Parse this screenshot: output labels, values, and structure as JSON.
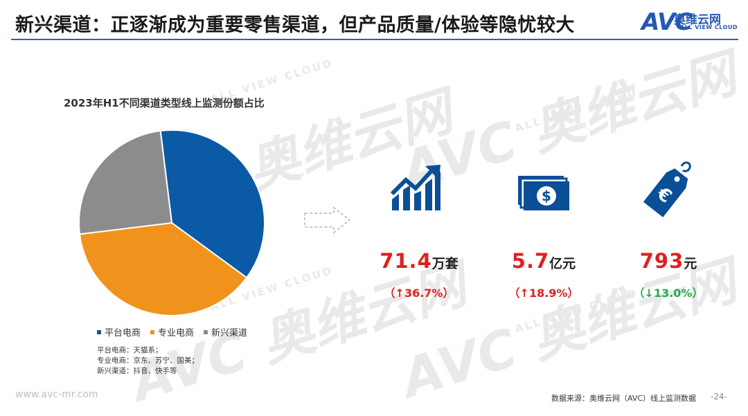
{
  "header": {
    "title": "新兴渠道：正逐渐成为重要零售渠道，但产品质量/体验等隐忧较大",
    "logo_mark": "AVC",
    "logo_cn": "奥维云网",
    "logo_en": "ALL VIEW CLOUD"
  },
  "watermark": {
    "mark": "AVC 奥维云网",
    "sub": "ALL VIEW CLOUD"
  },
  "chart_data": {
    "type": "pie",
    "title": "2023年H1不同渠道类型线上监测份额占比",
    "categories": [
      "平台电商",
      "专业电商",
      "新兴渠道"
    ],
    "values": [
      37,
      38,
      25
    ],
    "colors": [
      "#0b5aa6",
      "#f0931c",
      "#8c8c8c"
    ],
    "start_angle_deg": 263,
    "legend_position": "bottom",
    "notes": [
      "平台电商：天猫系；",
      "专业电商：京东、苏宁、国美；",
      "新兴渠道：抖音、快手等"
    ]
  },
  "kpis": [
    {
      "icon": "growth-chart-icon",
      "value": "71.4",
      "unit": "万套",
      "change": "（↑36.7%）",
      "direction": "up"
    },
    {
      "icon": "money-icon",
      "value": "5.7",
      "unit": "亿元",
      "change": "（↑18.9%）",
      "direction": "up"
    },
    {
      "icon": "euro-price-tag-icon",
      "value": "793",
      "unit": "元",
      "change": "（↓13.0%）",
      "direction": "down"
    }
  ],
  "footer": {
    "website": "www.avc-mr.com",
    "source": "数据来源：奥维云网（AVC）线上监测数据",
    "page": "-24-"
  }
}
